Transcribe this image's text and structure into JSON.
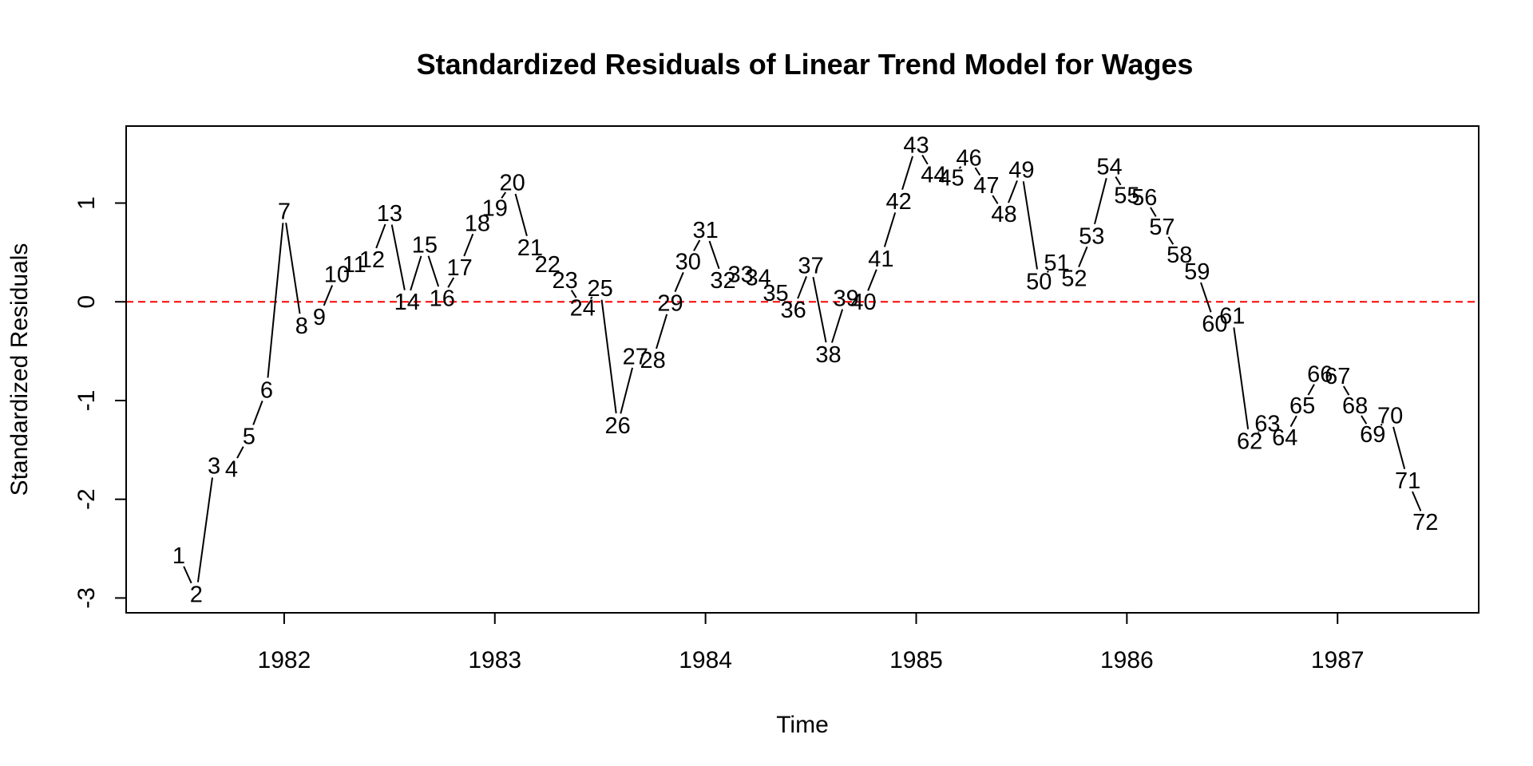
{
  "chart_data": {
    "type": "line",
    "title": "Standardized Residuals of Linear Trend Model for Wages",
    "xlabel": "Time",
    "ylabel": "Standardized Residuals",
    "xlim": [
      1981.25,
      1987.67
    ],
    "ylim": [
      -3.15,
      1.78
    ],
    "xticks": [
      1982,
      1983,
      1984,
      1985,
      1986,
      1987
    ],
    "xtick_labels": [
      "1982",
      "1983",
      "1984",
      "1985",
      "1986",
      "1987"
    ],
    "yticks": [
      -3,
      -2,
      -1,
      0,
      1
    ],
    "ytick_labels": [
      "-3",
      "-2",
      "-1",
      "0",
      "1"
    ],
    "point_style": "index labels",
    "series": [
      {
        "start": "1981-07",
        "frequency": "monthly",
        "labels": [
          "1",
          "2",
          "3",
          "4",
          "5",
          "6",
          "7",
          "8",
          "9",
          "10",
          "11",
          "12",
          "13",
          "14",
          "15",
          "16",
          "17",
          "18",
          "19",
          "20",
          "21",
          "22",
          "23",
          "24",
          "25",
          "26",
          "27",
          "28",
          "29",
          "30",
          "31",
          "32",
          "33",
          "34",
          "35",
          "36",
          "37",
          "38",
          "39",
          "40",
          "41",
          "42",
          "43",
          "44",
          "45",
          "46",
          "47",
          "48",
          "49",
          "50",
          "51",
          "52",
          "53",
          "54",
          "55",
          "56",
          "57",
          "58",
          "59",
          "60",
          "61",
          "62",
          "63",
          "64",
          "65",
          "66",
          "67",
          "68",
          "69",
          "70",
          "71",
          "72"
        ],
        "x": [
          1981.5,
          1981.583,
          1981.667,
          1981.75,
          1981.833,
          1981.917,
          1982.0,
          1982.083,
          1982.167,
          1982.25,
          1982.333,
          1982.417,
          1982.5,
          1982.583,
          1982.667,
          1982.75,
          1982.833,
          1982.917,
          1983.0,
          1983.083,
          1983.167,
          1983.25,
          1983.333,
          1983.417,
          1983.5,
          1983.583,
          1983.667,
          1983.75,
          1983.833,
          1983.917,
          1984.0,
          1984.083,
          1984.167,
          1984.25,
          1984.333,
          1984.417,
          1984.5,
          1984.583,
          1984.667,
          1984.75,
          1984.833,
          1984.917,
          1985.0,
          1985.083,
          1985.167,
          1985.25,
          1985.333,
          1985.417,
          1985.5,
          1985.583,
          1985.667,
          1985.75,
          1985.833,
          1985.917,
          1986.0,
          1986.083,
          1986.167,
          1986.25,
          1986.333,
          1986.417,
          1986.5,
          1986.583,
          1986.667,
          1986.75,
          1986.833,
          1986.917,
          1987.0,
          1987.083,
          1987.167,
          1987.25,
          1987.333,
          1987.417
        ],
        "values": [
          -2.57,
          -2.96,
          -1.66,
          -1.69,
          -1.36,
          -0.89,
          0.92,
          -0.24,
          -0.15,
          0.28,
          0.38,
          0.43,
          0.9,
          0.0,
          0.58,
          0.04,
          0.35,
          0.8,
          0.95,
          1.21,
          0.55,
          0.38,
          0.22,
          -0.06,
          0.14,
          -1.25,
          -0.55,
          -0.59,
          -0.01,
          0.41,
          0.73,
          0.22,
          0.28,
          0.25,
          0.09,
          -0.08,
          0.37,
          -0.53,
          0.04,
          0.0,
          0.44,
          1.02,
          1.59,
          1.29,
          1.26,
          1.46,
          1.18,
          0.89,
          1.34,
          0.21,
          0.4,
          0.24,
          0.67,
          1.37,
          1.08,
          1.06,
          0.76,
          0.48,
          0.31,
          -0.22,
          -0.14,
          -1.41,
          -1.23,
          -1.37,
          -1.05,
          -0.73,
          -0.75,
          -1.05,
          -1.34,
          -1.15,
          -1.81,
          -2.23
        ]
      }
    ],
    "reference_line": {
      "y": 0,
      "style": "dashed",
      "color": "#ff0000"
    },
    "grid": false,
    "line_color": "#000000",
    "background": "#ffffff"
  }
}
